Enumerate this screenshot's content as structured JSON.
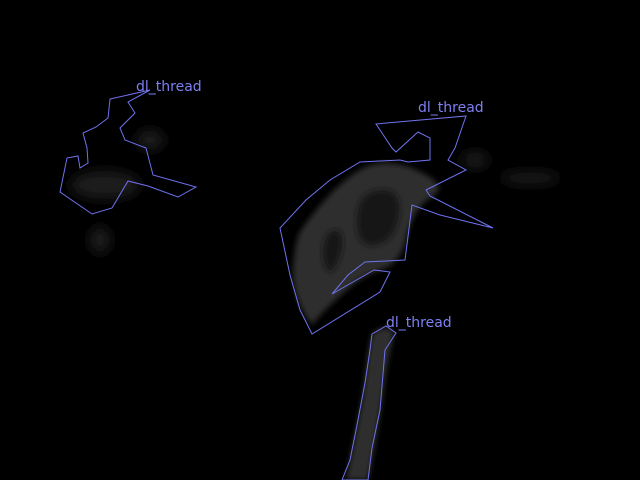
{
  "colors": {
    "background": "#000000",
    "outline": "#6f72ee",
    "label": "#7d80f0",
    "mask_fill": "#2e2e2e",
    "mask_dark": "#141414",
    "haze": "#1b1b1b"
  },
  "detections": [
    {
      "label": "dl_thread"
    },
    {
      "label": "dl_thread"
    },
    {
      "label": "dl_thread"
    }
  ]
}
